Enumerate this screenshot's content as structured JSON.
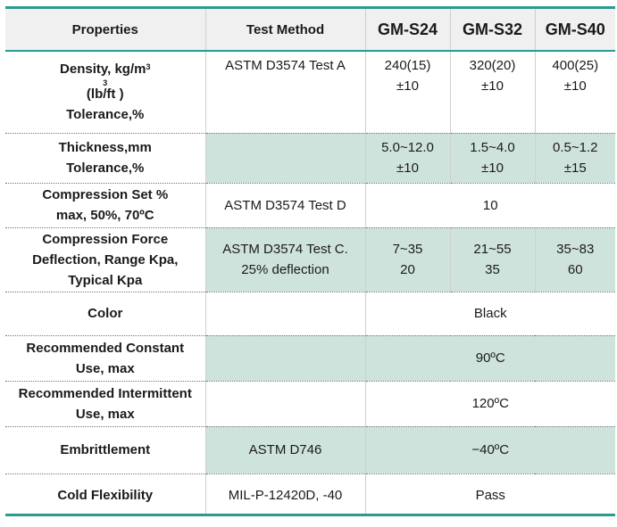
{
  "header": {
    "properties": "Properties",
    "test_method": "Test Method",
    "grades": [
      "GM-S24",
      "GM-S32",
      "GM-S40"
    ]
  },
  "rows": {
    "density": {
      "property_line1": "Density, kg/m",
      "property_sup1": "3",
      "property_sup2": "3",
      "property_line2": "(lb/ft )",
      "property_line3": "Tolerance,%",
      "method": "ASTM D3574 Test A",
      "s24_line1": "240(15)",
      "s24_line2": "±10",
      "s32_line1": "320(20)",
      "s32_line2": "±10",
      "s40_line1": "400(25)",
      "s40_line2": "±10"
    },
    "thickness": {
      "property_line1": "Thickness,mm",
      "property_line2": "Tolerance,%",
      "method": "",
      "s24_line1": "5.0~12.0",
      "s24_line2": "±10",
      "s32_line1": "1.5~4.0",
      "s32_line2": "±10",
      "s40_line1": "0.5~1.2",
      "s40_line2": "±15"
    },
    "compression_set": {
      "property_line1": "Compression Set %",
      "property_line2": "max, 50%, 70ºC",
      "method": "ASTM D3574 Test D",
      "value": "10"
    },
    "compression_force": {
      "property_line1": "Compression Force",
      "property_line2": "Deflection, Range Kpa,",
      "property_line3": "Typical Kpa",
      "method_line1": "ASTM D3574 Test C.",
      "method_line2": "25% deflection",
      "s24_line1": "7~35",
      "s24_line2": "20",
      "s32_line1": "21~55",
      "s32_line2": "35",
      "s40_line1": "35~83",
      "s40_line2": "60"
    },
    "color": {
      "property": "Color",
      "method": "",
      "value": "Black"
    },
    "constant_use": {
      "property_line1": "Recommended Constant",
      "property_line2": "Use, max",
      "method": "",
      "value": "90ºC"
    },
    "intermittent_use": {
      "property_line1": "Recommended Intermittent",
      "property_line2": "Use, max",
      "method": "",
      "value": "120ºC"
    },
    "embrittlement": {
      "property": "Embrittlement",
      "method": "ASTM D746",
      "value": "−40ºC"
    },
    "cold_flexibility": {
      "property": "Cold Flexibility",
      "method": "MIL-P-12420D, -40",
      "value": "Pass"
    }
  },
  "colors": {
    "accent_teal": "#2a9b8f",
    "shaded_cell": "#cfe3dd",
    "header_bg": "#f0f0f0"
  }
}
